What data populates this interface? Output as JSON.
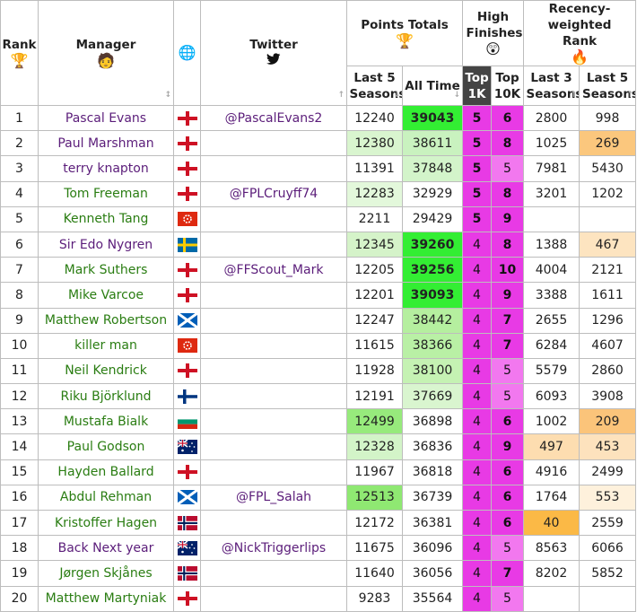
{
  "headers": {
    "rank": "Rank",
    "manager": "Manager",
    "twitter": "Twitter",
    "points_totals": "Points Totals",
    "high_finishes": "High Finishes",
    "recency": "Recency-weighted Rank",
    "last5_seasons": "Last 5 Seasons",
    "all_time": "All Time",
    "top1k": "Top 1K",
    "top10k": "Top 10K",
    "last3_seasons": "Last 3 Seasons",
    "last5_seasons_rank": "Last 5 Seasons"
  },
  "icons": {
    "trophy": "🏆",
    "manager": "🧑",
    "globe": "🌐",
    "twitter": "🐦",
    "astonished": "😲",
    "fire": "🔥"
  },
  "colors": {
    "high_finish": "#e83ae5",
    "all_time_max": "#33dd33",
    "manager_green": "#2a7d12",
    "manager_purple": "#5b1d7a"
  },
  "rows": [
    {
      "rank": "1",
      "manager": "Pascal Evans",
      "mcolor": "purple",
      "flag": "eng",
      "twitter": "@PascalEvans2",
      "last5": "12240",
      "l5bg": "#ffffff",
      "alltime": "39043",
      "atbg": "#33ee33",
      "atbold": true,
      "top1k": "5",
      "top10k": "6",
      "l3": "2800",
      "l3bg": "#ffffff",
      "l5r": "998",
      "l5rbg": "#ffffff"
    },
    {
      "rank": "2",
      "manager": "Paul Marshman",
      "mcolor": "purple",
      "flag": "eng",
      "twitter": "",
      "last5": "12380",
      "l5bg": "#d9f5cf",
      "alltime": "38611",
      "atbg": "#c9f2bf",
      "atbold": false,
      "top1k": "5",
      "top10k": "8",
      "l3": "1025",
      "l3bg": "#ffffff",
      "l5r": "269",
      "l5rbg": "#fbc77d"
    },
    {
      "rank": "3",
      "manager": "terry knapton",
      "mcolor": "purple",
      "flag": "eng",
      "twitter": "",
      "last5": "11391",
      "l5bg": "#ffffff",
      "alltime": "37848",
      "atbg": "#d3f4ca",
      "atbold": false,
      "top1k": "5",
      "top10k": "5",
      "l3": "7981",
      "l3bg": "#ffffff",
      "l5r": "5430",
      "l5rbg": "#ffffff"
    },
    {
      "rank": "4",
      "manager": "Tom Freeman",
      "mcolor": "green",
      "flag": "eng",
      "twitter": "@FPLCruyff74",
      "last5": "12283",
      "l5bg": "#e3f8db",
      "alltime": "32929",
      "atbg": "#ffffff",
      "atbold": false,
      "top1k": "5",
      "top10k": "8",
      "l3": "3201",
      "l3bg": "#ffffff",
      "l5r": "1202",
      "l5rbg": "#ffffff"
    },
    {
      "rank": "5",
      "manager": "Kenneth Tang",
      "mcolor": "green",
      "flag": "hk",
      "twitter": "",
      "last5": "2211",
      "l5bg": "#ffffff",
      "alltime": "29429",
      "atbg": "#ffffff",
      "atbold": false,
      "top1k": "5",
      "top10k": "9",
      "l3": "",
      "l3bg": "#ffffff",
      "l5r": "",
      "l5rbg": "#ffffff"
    },
    {
      "rank": "6",
      "manager": "Sir Edo Nygren",
      "mcolor": "purple",
      "flag": "se",
      "twitter": "",
      "last5": "12345",
      "l5bg": "#d5f3c9",
      "alltime": "39260",
      "atbg": "#33ee33",
      "atbold": true,
      "top1k": "4",
      "top10k": "8",
      "l3": "1388",
      "l3bg": "#ffffff",
      "l5r": "467",
      "l5rbg": "#fde4c0"
    },
    {
      "rank": "7",
      "manager": "Mark Suthers",
      "mcolor": "green",
      "flag": "eng",
      "twitter": "@FFScout_Mark",
      "last5": "12205",
      "l5bg": "#ffffff",
      "alltime": "39256",
      "atbg": "#33ee33",
      "atbold": true,
      "top1k": "4",
      "top10k": "10",
      "l3": "4004",
      "l3bg": "#ffffff",
      "l5r": "2121",
      "l5rbg": "#ffffff"
    },
    {
      "rank": "8",
      "manager": "Mike Varcoe",
      "mcolor": "green",
      "flag": "eng",
      "twitter": "",
      "last5": "12201",
      "l5bg": "#ffffff",
      "alltime": "39093",
      "atbg": "#33ee33",
      "atbold": true,
      "top1k": "4",
      "top10k": "9",
      "l3": "3388",
      "l3bg": "#ffffff",
      "l5r": "1611",
      "l5rbg": "#ffffff"
    },
    {
      "rank": "9",
      "manager": "Matthew Robertson",
      "mcolor": "green",
      "flag": "sco",
      "twitter": "",
      "last5": "12247",
      "l5bg": "#ffffff",
      "alltime": "38442",
      "atbg": "#b5ef9f",
      "atbold": false,
      "top1k": "4",
      "top10k": "7",
      "l3": "2655",
      "l3bg": "#ffffff",
      "l5r": "1296",
      "l5rbg": "#ffffff"
    },
    {
      "rank": "10",
      "manager": "killer man",
      "mcolor": "green",
      "flag": "hk",
      "twitter": "",
      "last5": "11615",
      "l5bg": "#ffffff",
      "alltime": "38366",
      "atbg": "#b9f0a5",
      "atbold": false,
      "top1k": "4",
      "top10k": "7",
      "l3": "6284",
      "l3bg": "#ffffff",
      "l5r": "4607",
      "l5rbg": "#ffffff"
    },
    {
      "rank": "11",
      "manager": "Neil Kendrick",
      "mcolor": "green",
      "flag": "eng",
      "twitter": "",
      "last5": "11928",
      "l5bg": "#ffffff",
      "alltime": "38100",
      "atbg": "#c5f2b3",
      "atbold": false,
      "top1k": "4",
      "top10k": "5",
      "l3": "5579",
      "l3bg": "#ffffff",
      "l5r": "2860",
      "l5rbg": "#ffffff"
    },
    {
      "rank": "12",
      "manager": "Riku Björklund",
      "mcolor": "green",
      "flag": "fi",
      "twitter": "",
      "last5": "12191",
      "l5bg": "#ffffff",
      "alltime": "37669",
      "atbg": "#d9f5cf",
      "atbold": false,
      "top1k": "4",
      "top10k": "5",
      "l3": "6093",
      "l3bg": "#ffffff",
      "l5r": "3908",
      "l5rbg": "#ffffff"
    },
    {
      "rank": "13",
      "manager": "Mustafa Bialk",
      "mcolor": "green",
      "flag": "bg",
      "twitter": "",
      "last5": "12499",
      "l5bg": "#97ea7c",
      "alltime": "36898",
      "atbg": "#ffffff",
      "atbold": false,
      "top1k": "4",
      "top10k": "6",
      "l3": "1002",
      "l3bg": "#ffffff",
      "l5r": "209",
      "l5rbg": "#fbc47a"
    },
    {
      "rank": "14",
      "manager": "Paul Godson",
      "mcolor": "green",
      "flag": "au",
      "twitter": "",
      "last5": "12328",
      "l5bg": "#d3f4c8",
      "alltime": "36836",
      "atbg": "#ffffff",
      "atbold": false,
      "top1k": "4",
      "top10k": "9",
      "l3": "497",
      "l3bg": "#fdddb0",
      "l5r": "453",
      "l5rbg": "#fde2bd"
    },
    {
      "rank": "15",
      "manager": "Hayden Ballard",
      "mcolor": "green",
      "flag": "eng",
      "twitter": "",
      "last5": "11967",
      "l5bg": "#ffffff",
      "alltime": "36818",
      "atbg": "#ffffff",
      "atbold": false,
      "top1k": "4",
      "top10k": "6",
      "l3": "4916",
      "l3bg": "#ffffff",
      "l5r": "2499",
      "l5rbg": "#ffffff"
    },
    {
      "rank": "16",
      "manager": "Abdul Rehman",
      "mcolor": "green",
      "flag": "sco",
      "twitter": "@FPL_Salah",
      "last5": "12513",
      "l5bg": "#8fe872",
      "alltime": "36739",
      "atbg": "#ffffff",
      "atbold": false,
      "top1k": "4",
      "top10k": "6",
      "l3": "1764",
      "l3bg": "#ffffff",
      "l5r": "553",
      "l5rbg": "#fef1dc"
    },
    {
      "rank": "17",
      "manager": "Kristoffer Hagen",
      "mcolor": "green",
      "flag": "no",
      "twitter": "",
      "last5": "12172",
      "l5bg": "#ffffff",
      "alltime": "36381",
      "atbg": "#ffffff",
      "atbold": false,
      "top1k": "4",
      "top10k": "6",
      "l3": "40",
      "l3bg": "#fbb946",
      "l5r": "2559",
      "l5rbg": "#ffffff"
    },
    {
      "rank": "18",
      "manager": "Back Next year",
      "mcolor": "purple",
      "flag": "au",
      "twitter": "@NickTriggerlips",
      "last5": "11675",
      "l5bg": "#ffffff",
      "alltime": "36096",
      "atbg": "#ffffff",
      "atbold": false,
      "top1k": "4",
      "top10k": "5",
      "l3": "8563",
      "l3bg": "#ffffff",
      "l5r": "6066",
      "l5rbg": "#ffffff"
    },
    {
      "rank": "19",
      "manager": "Jørgen Skjånes",
      "mcolor": "green",
      "flag": "no",
      "twitter": "",
      "last5": "11640",
      "l5bg": "#ffffff",
      "alltime": "36056",
      "atbg": "#ffffff",
      "atbold": false,
      "top1k": "4",
      "top10k": "7",
      "l3": "8202",
      "l3bg": "#ffffff",
      "l5r": "5852",
      "l5rbg": "#ffffff"
    },
    {
      "rank": "20",
      "manager": "Matthew Martyniak",
      "mcolor": "green",
      "flag": "eng",
      "twitter": "",
      "last5": "9283",
      "l5bg": "#ffffff",
      "alltime": "35564",
      "atbg": "#ffffff",
      "atbold": false,
      "top1k": "4",
      "top10k": "5",
      "l3": "",
      "l3bg": "#ffffff",
      "l5r": "",
      "l5rbg": "#ffffff"
    }
  ]
}
